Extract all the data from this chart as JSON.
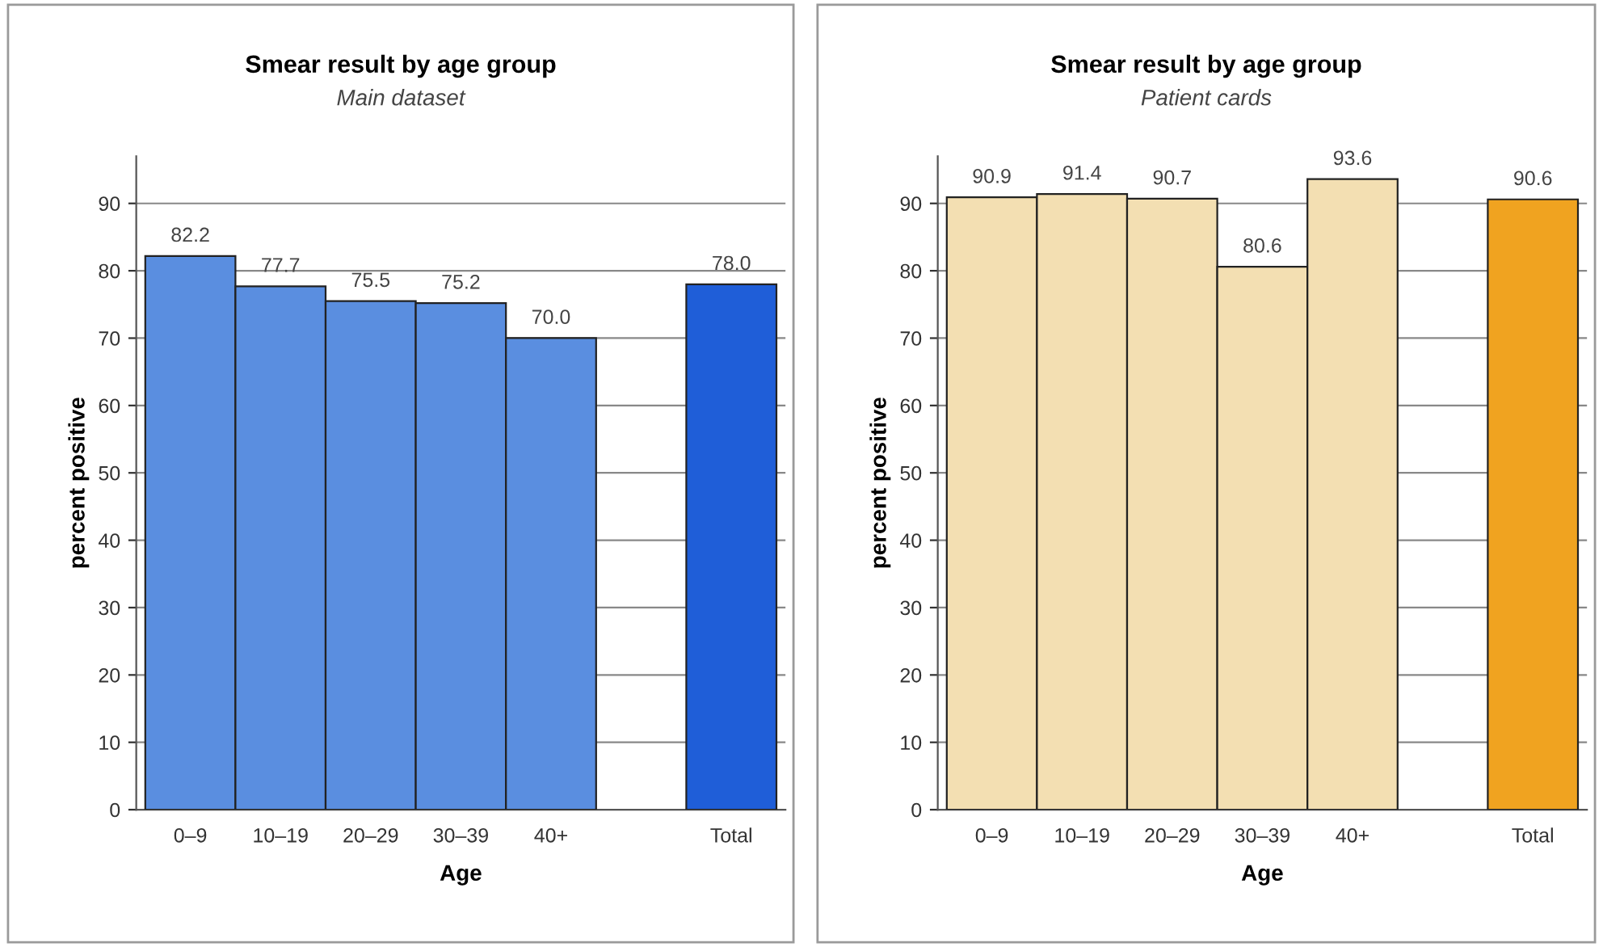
{
  "chart_data": [
    {
      "type": "bar",
      "title": "Smear result by age group",
      "subtitle": "Main dataset",
      "xlabel": "Age",
      "ylabel": "percent positive",
      "categories": [
        "0–9",
        "10–19",
        "20–29",
        "30–39",
        "40+",
        null,
        "Total"
      ],
      "values": [
        82.2,
        77.7,
        75.5,
        75.2,
        70.0,
        null,
        78.0
      ],
      "value_labels": [
        "82.2",
        "77.7",
        "75.5",
        "75.2",
        "70.0",
        null,
        "78.0"
      ],
      "colors": [
        "#5a8ee0",
        "#5a8ee0",
        "#5a8ee0",
        "#5a8ee0",
        "#5a8ee0",
        "#5a8ee0",
        "#1f5ed8"
      ],
      "ylim": [
        0,
        97
      ],
      "yticks": [
        0,
        10,
        20,
        30,
        40,
        50,
        60,
        70,
        80,
        90
      ],
      "grid": "y"
    },
    {
      "type": "bar",
      "title": "Smear result by age group",
      "subtitle": "Patient cards",
      "xlabel": "Age",
      "ylabel": "percent positive",
      "categories": [
        "0–9",
        "10–19",
        "20–29",
        "30–39",
        "40+",
        null,
        "Total"
      ],
      "values": [
        90.9,
        91.4,
        90.7,
        80.6,
        93.6,
        null,
        90.6
      ],
      "value_labels": [
        "90.9",
        "91.4",
        "90.7",
        "80.6",
        "93.6",
        null,
        "90.6"
      ],
      "colors": [
        "#f3dfb2",
        "#f3dfb2",
        "#f3dfb2",
        "#f3dfb2",
        "#f3dfb2",
        "#f3dfb2",
        "#f0a320"
      ],
      "ylim": [
        0,
        97
      ],
      "yticks": [
        0,
        10,
        20,
        30,
        40,
        50,
        60,
        70,
        80,
        90
      ],
      "grid": "y"
    }
  ]
}
